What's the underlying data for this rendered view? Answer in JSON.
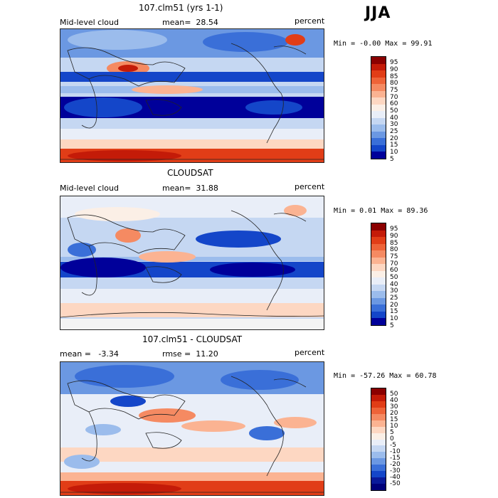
{
  "season": "JJA",
  "panels": [
    {
      "title": "107.clm51 (yrs 1-1)",
      "left_label": "Mid-level cloud",
      "center_label": "mean=",
      "center_value": "28.54",
      "right_label": "percent",
      "minmax": "Min =  -0.00 Max =  99.91",
      "colorbar_labels": [
        "95",
        "90",
        "85",
        "80",
        "75",
        "70",
        "60",
        "50",
        "40",
        "30",
        "25",
        "20",
        "15",
        "10",
        "5"
      ],
      "colors": [
        "#8b0000",
        "#c41b08",
        "#e13d17",
        "#ee6338",
        "#f58a62",
        "#fbb392",
        "#fdd7c2",
        "#fbefe6",
        "#e9eef8",
        "#c5d7f2",
        "#9bbcec",
        "#6b98e2",
        "#3a6fd8",
        "#1446c9",
        "#00009a"
      ]
    },
    {
      "title": "CLOUDSAT",
      "left_label": "Mid-level cloud",
      "center_label": "mean=",
      "center_value": "31.88",
      "right_label": "percent",
      "minmax": "Min =   0.01 Max =  89.36",
      "colorbar_labels": [
        "95",
        "90",
        "85",
        "80",
        "75",
        "70",
        "60",
        "50",
        "40",
        "30",
        "25",
        "20",
        "15",
        "10",
        "5"
      ],
      "colors": [
        "#8b0000",
        "#c41b08",
        "#e13d17",
        "#ee6338",
        "#f58a62",
        "#fbb392",
        "#fdd7c2",
        "#fbefe6",
        "#e9eef8",
        "#c5d7f2",
        "#9bbcec",
        "#6b98e2",
        "#3a6fd8",
        "#1446c9",
        "#00009a"
      ]
    },
    {
      "title": "107.clm51 - CLOUDSAT",
      "left_label": "mean =",
      "left_value": "-3.34",
      "center_label": "rmse =",
      "center_value": "11.20",
      "right_label": "percent",
      "minmax": "Min = -57.26 Max =  60.78",
      "colorbar_labels": [
        "50",
        "40",
        "30",
        "20",
        "15",
        "10",
        "5",
        "0",
        "-5",
        "-10",
        "-15",
        "-20",
        "-30",
        "-40",
        "-50"
      ],
      "colors": [
        "#8b0000",
        "#c41b08",
        "#e13d17",
        "#ee6338",
        "#f58a62",
        "#fbb392",
        "#fdd7c2",
        "#fbefe6",
        "#e9eef8",
        "#c5d7f2",
        "#9bbcec",
        "#6b98e2",
        "#3a6fd8",
        "#1446c9",
        "#0a1a9a",
        "#00007a"
      ]
    }
  ]
}
